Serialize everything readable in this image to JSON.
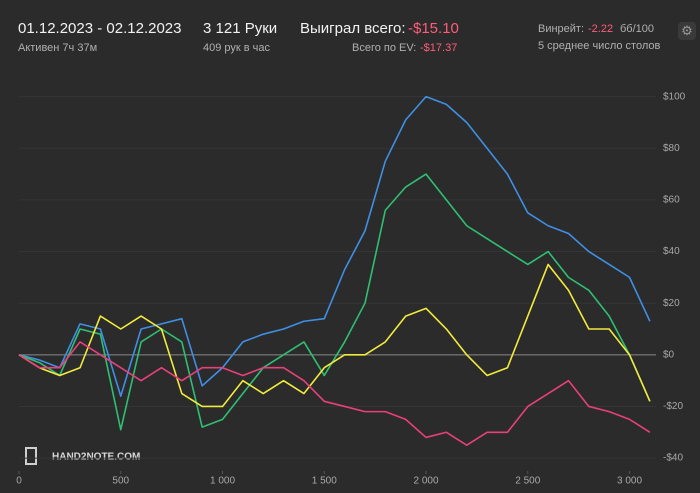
{
  "header": {
    "dates": "01.12.2023 - 02.12.2023",
    "active": "Активен 7ч 37м",
    "hands": "3 121 Руки",
    "hands_per_hour": "409 рук в час",
    "won_label": "Выиграл всего:",
    "won_value": "-$15.10",
    "ev_label": "Всего по EV:",
    "ev_value": "-$17.37",
    "winrate_label": "Винрейт:",
    "winrate_value": "-2.22",
    "winrate_unit": "бб/100",
    "tables": "5 среднее число столов",
    "logo": "HAND2NOTE.COM"
  },
  "chart_data": {
    "type": "line",
    "x": [
      0,
      100,
      200,
      300,
      400,
      500,
      600,
      700,
      800,
      900,
      1000,
      1100,
      1200,
      1300,
      1400,
      1500,
      1600,
      1700,
      1800,
      1900,
      2000,
      2100,
      2200,
      2300,
      2400,
      2500,
      2600,
      2700,
      2800,
      2900,
      3000,
      3100
    ],
    "series": [
      {
        "color": "#3f8fe4",
        "values": [
          0,
          -2,
          -5,
          12,
          10,
          -16,
          10,
          12,
          14,
          -12,
          -5,
          5,
          8,
          10,
          13,
          14,
          33,
          48,
          75,
          91,
          100,
          97,
          90,
          80,
          70,
          55,
          50,
          47,
          40,
          35,
          30,
          13
        ]
      },
      {
        "color": "#2fbf72",
        "values": [
          0,
          -3,
          -8,
          10,
          8,
          -29,
          5,
          10,
          5,
          -28,
          -25,
          -15,
          -5,
          0,
          5,
          -8,
          5,
          20,
          56,
          65,
          70,
          60,
          50,
          45,
          40,
          35,
          40,
          30,
          25,
          15,
          0,
          -18
        ]
      },
      {
        "color": "#f2ea3c",
        "values": [
          0,
          -5,
          -8,
          -5,
          15,
          10,
          15,
          10,
          -15,
          -20,
          -20,
          -10,
          -15,
          -10,
          -15,
          -5,
          0,
          0,
          5,
          15,
          18,
          10,
          0,
          -8,
          -5,
          15,
          35,
          25,
          10,
          10,
          0,
          -18
        ]
      },
      {
        "color": "#e8407a",
        "values": [
          0,
          -5,
          -5,
          5,
          0,
          -5,
          -10,
          -5,
          -10,
          -5,
          -5,
          -8,
          -5,
          -5,
          -10,
          -18,
          -20,
          -22,
          -22,
          -25,
          -32,
          -30,
          -35,
          -30,
          -30,
          -20,
          -15,
          -10,
          -20,
          -22,
          -25,
          -30
        ]
      }
    ],
    "xlim": [
      0,
      3130
    ],
    "ylim": [
      -45,
      108
    ],
    "xticks": [
      0,
      500,
      {
        "value": 1000,
        "label": "1 000"
      },
      {
        "value": 1500,
        "label": "1 500"
      },
      {
        "value": 2000,
        "label": "2 000"
      },
      {
        "value": 2500,
        "label": "2 500"
      },
      {
        "value": 3000,
        "label": "3 000"
      }
    ],
    "yticks": [
      {
        "value": -40,
        "label": "-$40"
      },
      {
        "value": -20,
        "label": "-$20"
      },
      {
        "value": 0,
        "label": "$0"
      },
      {
        "value": 20,
        "label": "$20"
      },
      {
        "value": 40,
        "label": "$40"
      },
      {
        "value": 60,
        "label": "$60"
      },
      {
        "value": 80,
        "label": "$80"
      },
      {
        "value": 100,
        "label": "$100"
      }
    ],
    "grid": true
  }
}
